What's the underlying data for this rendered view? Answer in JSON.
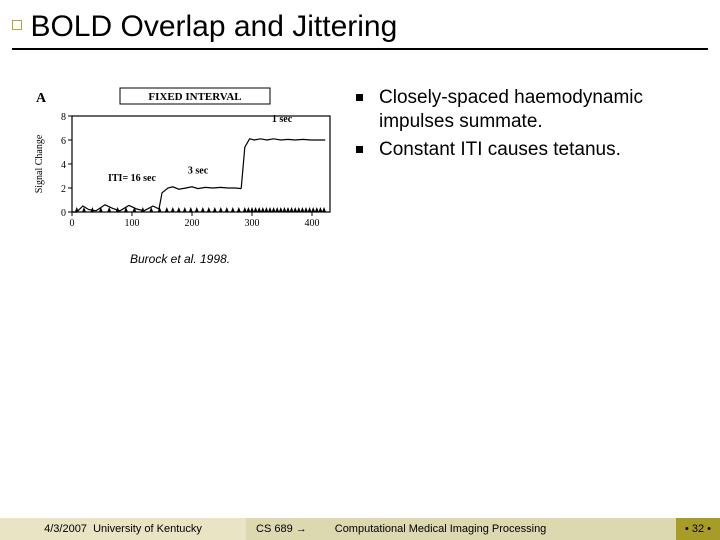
{
  "colors": {
    "accent": "#b4a832",
    "footer_left_bg": "#e8e4c4",
    "footer_mid_bg": "#dcd8b0",
    "footer_right_bg": "#a89c28",
    "text": "#000000"
  },
  "title": "BOLD Overlap and Jittering",
  "figure": {
    "caption": "Burock et al. 1998.",
    "panel_label": "A",
    "header_text": "FIXED INTERVAL",
    "y_label": "Signal Change",
    "y_ticks": [
      0,
      2,
      4,
      6,
      8
    ],
    "x_ticks": [
      0,
      100,
      200,
      300,
      400
    ],
    "iti_label": "ITI= 16 sec",
    "annotations": [
      "3 sec",
      "1 sec"
    ],
    "ylim": [
      0,
      8
    ],
    "xlim": [
      0,
      430
    ],
    "series": {
      "trace1": [
        [
          0,
          0
        ],
        [
          8,
          0
        ],
        [
          18,
          0.5
        ],
        [
          28,
          0.2
        ],
        [
          40,
          0.1
        ],
        [
          55,
          0.6
        ],
        [
          68,
          0.3
        ],
        [
          80,
          0.1
        ],
        [
          95,
          0.55
        ],
        [
          108,
          0.25
        ],
        [
          120,
          0.1
        ],
        [
          135,
          0.5
        ],
        [
          145,
          0.25
        ]
      ],
      "trace2": [
        [
          145,
          0.25
        ],
        [
          150,
          1.6
        ],
        [
          160,
          2.0
        ],
        [
          168,
          2.1
        ],
        [
          178,
          1.9
        ],
        [
          190,
          2.0
        ],
        [
          200,
          2.1
        ],
        [
          210,
          1.95
        ],
        [
          222,
          2.05
        ],
        [
          235,
          2.0
        ],
        [
          248,
          2.05
        ],
        [
          260,
          2.0
        ],
        [
          272,
          2.0
        ],
        [
          282,
          1.95
        ]
      ],
      "trace3": [
        [
          282,
          1.95
        ],
        [
          288,
          5.4
        ],
        [
          296,
          6.1
        ],
        [
          304,
          6.0
        ],
        [
          314,
          6.1
        ],
        [
          325,
          6.0
        ],
        [
          336,
          6.1
        ],
        [
          348,
          6.0
        ],
        [
          360,
          6.05
        ],
        [
          372,
          6.0
        ],
        [
          385,
          6.05
        ],
        [
          398,
          6.0
        ],
        [
          410,
          6.0
        ],
        [
          422,
          6.0
        ]
      ],
      "ticks_bottom": [
        8,
        20,
        34,
        48,
        62,
        76,
        90,
        104,
        118,
        132,
        146,
        158,
        168,
        178,
        188,
        198,
        208,
        218,
        228,
        238,
        248,
        258,
        268,
        278,
        288,
        294,
        300,
        306,
        312,
        318,
        324,
        330,
        336,
        342,
        348,
        354,
        360,
        366,
        372,
        378,
        384,
        390,
        396,
        402,
        408,
        414,
        420
      ]
    }
  },
  "bullets": [
    "Closely-spaced haemodynamic impulses summate.",
    "Constant ITI causes tetanus."
  ],
  "footer": {
    "date": "4/3/2007",
    "org": "University of Kentucky",
    "course": "CS 689 →",
    "subject": "Computational Medical Imaging Processing",
    "page": "• 32 •"
  }
}
